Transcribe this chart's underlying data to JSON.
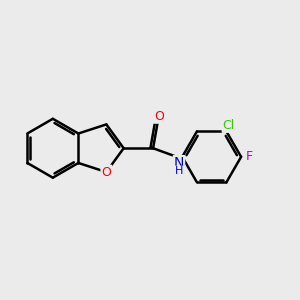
{
  "background_color": "#ebebeb",
  "bond_color": "#000000",
  "bond_width": 1.8,
  "atom_colors": {
    "O": "#ff0000",
    "N": "#0000cc",
    "Cl": "#33cc00",
    "F": "#cc00cc",
    "C": "#000000"
  },
  "font_size": 9,
  "figure_size": [
    3.0,
    3.0
  ],
  "dpi": 100
}
